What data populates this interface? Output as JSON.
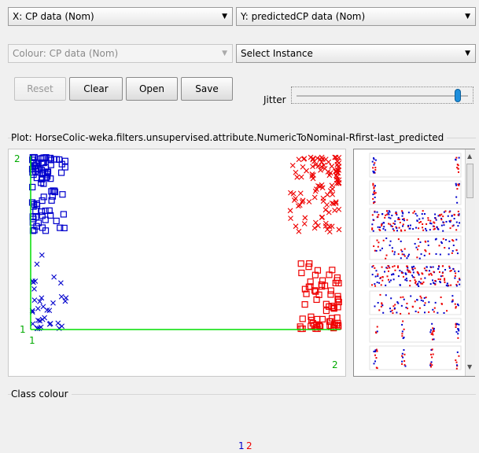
{
  "axes": {
    "x_combo": "X: CP data (Nom)",
    "y_combo": "Y: predictedCP data (Nom)",
    "colour_combo": "Colour: CP data (Nom)",
    "instance_combo": "Select Instance"
  },
  "buttons": {
    "reset": "Reset",
    "clear": "Clear",
    "open": "Open",
    "save": "Save"
  },
  "jitter_label": "Jitter",
  "jitter_level": 0.95,
  "plot_title": "Plot: HorseColic-weka.filters.unsupervised.attribute.NumericToNominal-Rfirst-last_predicted",
  "plot": {
    "y_top_label": "2",
    "y_bottom_label": "1",
    "x_left_label": "1",
    "x_right_label": "2"
  },
  "class_colour": {
    "title": "Class colour",
    "values": [
      "1",
      "2"
    ]
  },
  "colors": {
    "class1": "#0000cc",
    "class2": "#ee0000",
    "axis": "#00dd00",
    "jitter_thumb": "#1f8fdc"
  },
  "icons": {
    "dropdown": "chevron-down-icon",
    "scroll_up": "arrow-up-icon",
    "scroll_down": "arrow-down-icon"
  }
}
